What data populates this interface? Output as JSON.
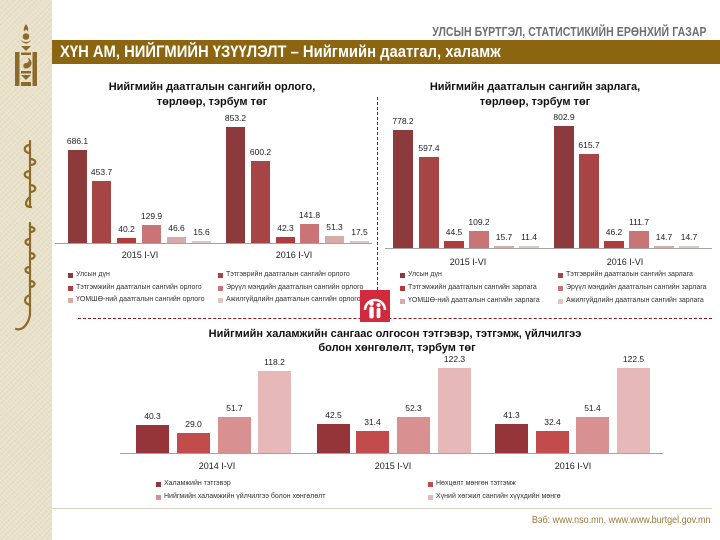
{
  "header": {
    "org_name": "УЛСЫН БҮРТГЭЛ, СТАТИСТИКИЙН ЕРӨНХИЙ ГАЗАР",
    "title": "ХҮН АМ, НИЙГМИЙН ҮЗҮҮЛЭЛТ – Нийгмийн даатгал, халамж"
  },
  "sidebar": {
    "emblem_icon": "soyombo-emblem-icon",
    "script_icon": "mongolian-script-icon"
  },
  "logo": {
    "icon": "social-insurance-logo-icon",
    "color": "#d02a3c"
  },
  "colors": {
    "header_bar": "#8c6510",
    "divider": "#8b1a1a",
    "sidebar_bg": "#e8e0c8",
    "footer_text": "#9c7a3c"
  },
  "footer": {
    "web": "Вэб: www.nso.mn, www.www.burtgel.gov.mn"
  },
  "chart_data": [
    {
      "type": "bar",
      "title": "Нийгмийн даатгалын сангийн орлого, төрлөөр, тэрбум төг",
      "title_lines": [
        "Нийгмийн даатгалын сангийн орлого,",
        "төрлөөр, тэрбум төг"
      ],
      "xlabel": "",
      "ylabel": "тэрбум төг",
      "grid": false,
      "legend_position": "bottom",
      "categories": [
        "2015 I-VI",
        "2016 I-VI"
      ],
      "series": [
        {
          "name": "Улсын дүн",
          "values": [
            686.1,
            853.2
          ],
          "color": "#8c3a3c"
        },
        {
          "name": "Тэтгэврийн даатгалын сангийн орлого",
          "values": [
            453.7,
            600.2
          ],
          "color": "#a64446"
        },
        {
          "name": "Тэтгэмжийн даатгалын сангийн орлого",
          "values": [
            40.2,
            42.3
          ],
          "color": "#b03c3e"
        },
        {
          "name": "Эрүүл мэндийн даатгалын сангийн орлого",
          "values": [
            129.9,
            141.8
          ],
          "color": "#c97476"
        },
        {
          "name": "ҮОМШӨ-ний даатгалын сангийн орлого",
          "values": [
            46.6,
            51.3
          ],
          "color": "#d9aaaa"
        },
        {
          "name": "Ажилгүйдлийн даатгалын сангийн орлого",
          "values": [
            15.6,
            17.5
          ],
          "color": "#dcc6c6"
        }
      ]
    },
    {
      "type": "bar",
      "title": "Нийгмийн даатгалын сангийн зарлага, төрлөөр, тэрбум төг",
      "title_lines": [
        "Нийгмийн даатгалын сангийн зарлага,",
        "төрлөөр, тэрбум төг"
      ],
      "xlabel": "",
      "ylabel": "тэрбум төг",
      "grid": false,
      "legend_position": "bottom",
      "categories": [
        "2015 I-VI",
        "2016 I-VI"
      ],
      "series": [
        {
          "name": "Улсын дүн",
          "values": [
            778.2,
            802.9
          ],
          "color": "#8c3a3c"
        },
        {
          "name": "Тэтгэврийн даатгалын сангийн зарлага",
          "values": [
            597.4,
            615.7
          ],
          "color": "#a64446"
        },
        {
          "name": "Тэтгэмжийн даатгалын сангийн зарлага",
          "values": [
            44.5,
            46.2
          ],
          "color": "#b03c3e"
        },
        {
          "name": "Эрүүл мэндийн даатгалын сангийн зарлага",
          "values": [
            109.2,
            111.7
          ],
          "color": "#c97476"
        },
        {
          "name": "ҮОМШӨ-ний даатгалын сангийн зарлага",
          "values": [
            15.7,
            14.7
          ],
          "color": "#d9aaaa"
        },
        {
          "name": "Ажилгүйдлийн даатгалын сангийн зарлага",
          "values": [
            11.4,
            14.7
          ],
          "color": "#dcc6c6"
        }
      ]
    },
    {
      "type": "bar",
      "title": "Нийгмийн халамжийн сангаас олгосон тэтгэвэр, тэтгэмж, үйлчилгээ болон хөнгөлөлт, тэрбум төг",
      "title_lines": [
        "Нийгмийн халамжийн сангаас олгосон тэтгэвэр, тэтгэмж, үйлчилгээ",
        "болон хөнгөлөлт, тэрбум төг"
      ],
      "xlabel": "",
      "ylabel": "тэрбум төг",
      "grid": false,
      "legend_position": "bottom",
      "categories": [
        "2014 I-VI",
        "2015 I-VI",
        "2016 I-VI"
      ],
      "series": [
        {
          "name": "Халамжийн тэтгэвэр",
          "values": [
            40.3,
            42.5,
            41.3
          ],
          "color": "#953539"
        },
        {
          "name": "Нөхцөлт мөнгөн тэтгэмж",
          "values": [
            29.0,
            31.4,
            32.4
          ],
          "color": "#c24b4b"
        },
        {
          "name": "Нийгмийн халамжийн үйлчилгээ болон хөнгөлөлт",
          "values": [
            51.7,
            52.3,
            51.4
          ],
          "color": "#d99090"
        },
        {
          "name": "Хүний хөгжил сангийн хүүхдийн мөнгө",
          "values": [
            118.2,
            122.3,
            122.5
          ],
          "color": "#e6b8b8"
        }
      ]
    }
  ]
}
